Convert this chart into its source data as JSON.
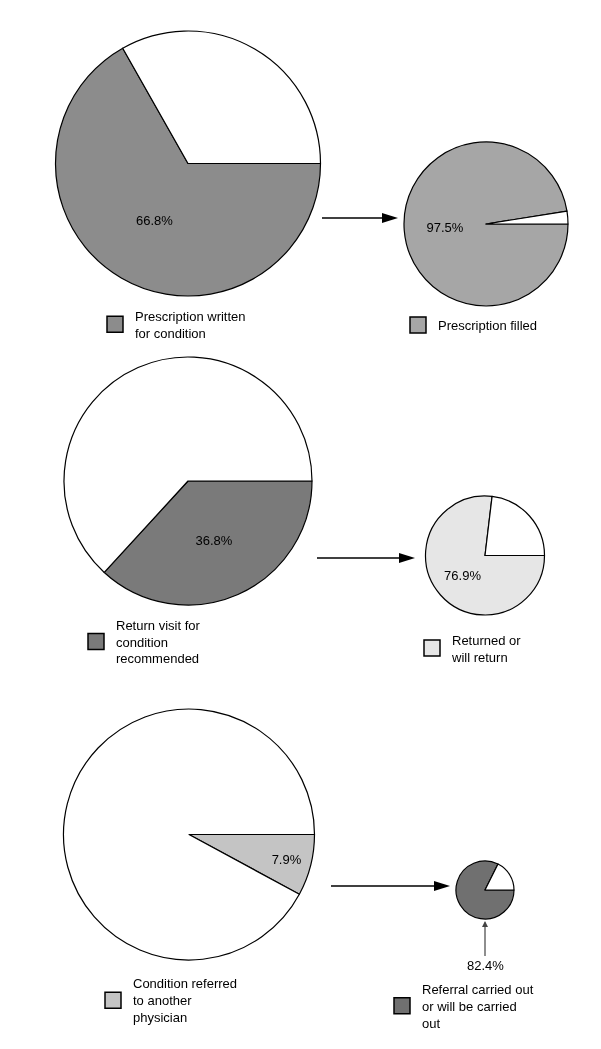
{
  "chart_data": [
    {
      "type": "pie",
      "categories": [
        "Prescription written for condition",
        null
      ],
      "values": [
        66.8,
        33.2
      ],
      "colors": [
        "#8c8c8c",
        "#ffffff"
      ],
      "value_labels": [
        "66.8%",
        null
      ],
      "legend": "bottom"
    },
    {
      "type": "pie",
      "categories": [
        "Prescription filled",
        null
      ],
      "values": [
        97.5,
        2.5
      ],
      "colors": [
        "#a6a6a6",
        "#ffffff"
      ],
      "value_labels": [
        "97.5%",
        null
      ],
      "legend": "bottom"
    },
    {
      "type": "pie",
      "categories": [
        "Return visit for condition recommended",
        null
      ],
      "values": [
        36.8,
        63.2
      ],
      "colors": [
        "#7a7a7a",
        "#ffffff"
      ],
      "value_labels": [
        "36.8%",
        null
      ],
      "legend": "bottom"
    },
    {
      "type": "pie",
      "categories": [
        "Returned or will return",
        null
      ],
      "values": [
        76.9,
        23.1
      ],
      "colors": [
        "#e6e6e6",
        "#ffffff"
      ],
      "value_labels": [
        "76.9%",
        null
      ],
      "legend": "bottom"
    },
    {
      "type": "pie",
      "categories": [
        "Condition referred to another physician",
        null
      ],
      "values": [
        7.9,
        92.1
      ],
      "colors": [
        "#c4c4c4",
        "#ffffff"
      ],
      "value_labels": [
        "7.9%",
        null
      ],
      "legend": "bottom"
    },
    {
      "type": "pie",
      "categories": [
        "Referral carried out or will be carried out",
        null
      ],
      "values": [
        82.4,
        17.6
      ],
      "colors": [
        "#707070",
        "#ffffff"
      ],
      "value_labels": [
        "82.4%",
        null
      ],
      "legend": "bottom"
    }
  ]
}
